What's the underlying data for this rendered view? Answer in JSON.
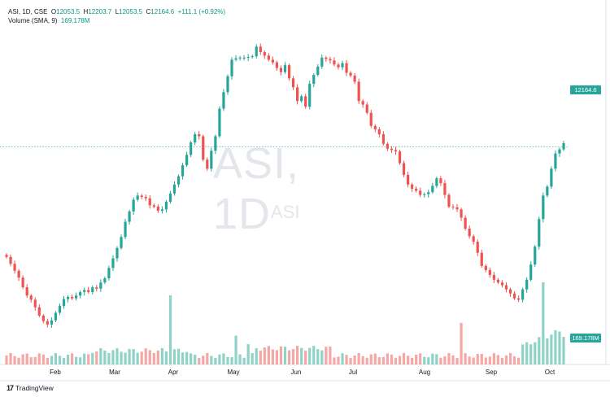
{
  "header": {
    "symbol_line": "ASI, 1D, CSE",
    "open_label": "O",
    "open": "12053.5",
    "high_label": "H",
    "high": "12203.7",
    "low_label": "L",
    "low": "12053.5",
    "close_label": "C",
    "close": "12164.6",
    "change": "+111.1 (+0.92%)",
    "volume_label": "Volume (SMA, 9)",
    "volume_value": "169.178M"
  },
  "watermark": {
    "title": "ASI, 1D",
    "symbol": "ASI"
  },
  "branding": {
    "logo": "TradingView",
    "logo_mark": "17"
  },
  "price_badge": "12164.6",
  "volume_badge": "169.178M",
  "colors": {
    "up": "#26a69a",
    "down": "#ef5350",
    "vol_up": "#8fd3c8",
    "vol_down": "#f5a7a6",
    "last_line": "#26a69a"
  },
  "chart_data": {
    "type": "candlestick",
    "x_tick_labels": [
      "Feb",
      "Mar",
      "Apr",
      "May",
      "Jun",
      "Jul",
      "Aug",
      "Sep",
      "Oct"
    ],
    "last_price": 12164.6,
    "last_volume": 169178000,
    "closes": [
      10570,
      10470,
      10370,
      10270,
      10130,
      10010,
      9950,
      9840,
      9720,
      9640,
      9590,
      9650,
      9760,
      9860,
      9960,
      9990,
      9970,
      10010,
      10060,
      10090,
      10060,
      10130,
      10110,
      10200,
      10260,
      10410,
      10550,
      10700,
      10860,
      11080,
      11230,
      11400,
      11460,
      11440,
      11420,
      11320,
      11300,
      11240,
      11260,
      11370,
      11490,
      11620,
      11740,
      11900,
      12050,
      12230,
      12350,
      12320,
      11980,
      11850,
      12110,
      12320,
      12720,
      12960,
      13190,
      13430,
      13450,
      13460,
      13460,
      13470,
      13480,
      13620,
      13540,
      13490,
      13430,
      13390,
      13310,
      13250,
      13350,
      13160,
      13030,
      12830,
      12900,
      12750,
      13080,
      13210,
      13330,
      13460,
      13440,
      13420,
      13360,
      13320,
      13380,
      13240,
      13200,
      13110,
      12830,
      12780,
      12660,
      12470,
      12420,
      12350,
      12210,
      12140,
      12120,
      12100,
      11930,
      11760,
      11620,
      11560,
      11530,
      11470,
      11480,
      11510,
      11600,
      11710,
      11640,
      11470,
      11300,
      11290,
      11260,
      11140,
      10980,
      10870,
      10790,
      10630,
      10440,
      10380,
      10310,
      10240,
      10200,
      10160,
      10100,
      10040,
      9970,
      9950,
      10100,
      10240,
      10460,
      10720,
      11120,
      11460,
      11590,
      11850,
      12070,
      12130,
      12220
    ]
  }
}
